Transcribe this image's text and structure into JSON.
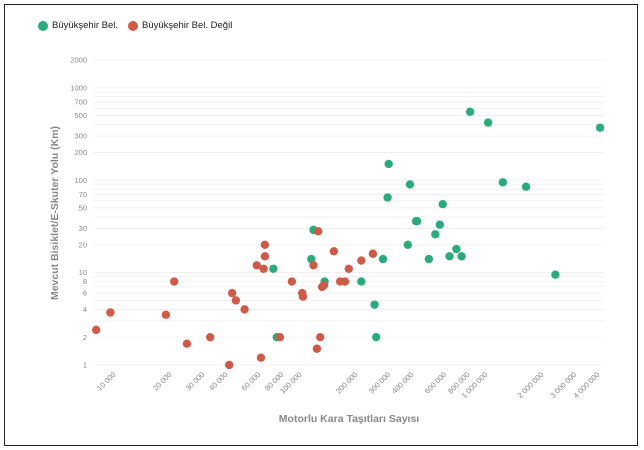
{
  "chart_data": {
    "type": "scatter",
    "title": "",
    "xlabel": "Motorlu Kara Taşıtları Sayısı",
    "ylabel": "Mevcut Bisiklet/E-Skuter Yolu (Km)",
    "x_scale": "log",
    "y_scale": "log",
    "xlim": [
      7500,
      4200000
    ],
    "ylim": [
      1,
      2000
    ],
    "grid": "horizontal",
    "legend_position": "top-left",
    "x_ticks": [
      {
        "value": 10000,
        "label": "10 000"
      },
      {
        "value": 20000,
        "label": "20 000"
      },
      {
        "value": 30000,
        "label": "30 000"
      },
      {
        "value": 40000,
        "label": "40 000"
      },
      {
        "value": 60000,
        "label": "60 000"
      },
      {
        "value": 80000,
        "label": "80 000"
      },
      {
        "value": 100000,
        "label": "100 000"
      },
      {
        "value": 200000,
        "label": "200 000"
      },
      {
        "value": 300000,
        "label": "300 000"
      },
      {
        "value": 400000,
        "label": "400 000"
      },
      {
        "value": 600000,
        "label": "600 000"
      },
      {
        "value": 800000,
        "label": "800 000"
      },
      {
        "value": 1000000,
        "label": "1 000 000"
      },
      {
        "value": 2000000,
        "label": "2 000 000"
      },
      {
        "value": 3000000,
        "label": "3 000 000"
      },
      {
        "value": 4000000,
        "label": "4 000 000"
      }
    ],
    "y_ticks": [
      {
        "value": 1,
        "label": "1"
      },
      {
        "value": 2,
        "label": "2"
      },
      {
        "value": 4,
        "label": "4"
      },
      {
        "value": 6,
        "label": "6"
      },
      {
        "value": 8,
        "label": "8"
      },
      {
        "value": 10,
        "label": "10"
      },
      {
        "value": 20,
        "label": "20"
      },
      {
        "value": 30,
        "label": "30"
      },
      {
        "value": 50,
        "label": "50"
      },
      {
        "value": 70,
        "label": "70"
      },
      {
        "value": 100,
        "label": "100"
      },
      {
        "value": 200,
        "label": "200"
      },
      {
        "value": 300,
        "label": "300"
      },
      {
        "value": 500,
        "label": "500"
      },
      {
        "value": 700,
        "label": "700"
      },
      {
        "value": 1000,
        "label": "1000"
      },
      {
        "value": 2000,
        "label": "2000"
      }
    ],
    "series": [
      {
        "name": "Büyükşehir Bel.",
        "color": "#2bab7c",
        "points": [
          [
            70000,
            11
          ],
          [
            73000,
            2
          ],
          [
            112000,
            14
          ],
          [
            115000,
            29
          ],
          [
            132000,
            8
          ],
          [
            208000,
            8
          ],
          [
            245000,
            4.5
          ],
          [
            250000,
            2
          ],
          [
            272000,
            14
          ],
          [
            288000,
            65
          ],
          [
            292000,
            150
          ],
          [
            370000,
            20
          ],
          [
            380000,
            90
          ],
          [
            410000,
            36
          ],
          [
            415000,
            36
          ],
          [
            480000,
            14
          ],
          [
            520000,
            26
          ],
          [
            550000,
            33
          ],
          [
            570000,
            55
          ],
          [
            620000,
            15
          ],
          [
            675000,
            18
          ],
          [
            720000,
            15
          ],
          [
            800000,
            550
          ],
          [
            1000000,
            420
          ],
          [
            1200000,
            95
          ],
          [
            1600000,
            85
          ],
          [
            2300000,
            9.5
          ],
          [
            4000000,
            370
          ]
        ]
      },
      {
        "name": "Büyükşehir Bel. Değil",
        "color": "#d05a48",
        "points": [
          [
            7800,
            2.4
          ],
          [
            9300,
            3.7
          ],
          [
            18500,
            3.5
          ],
          [
            20500,
            8
          ],
          [
            24000,
            1.7
          ],
          [
            32000,
            2
          ],
          [
            40500,
            1
          ],
          [
            42000,
            6
          ],
          [
            44000,
            5
          ],
          [
            49000,
            4
          ],
          [
            57000,
            12
          ],
          [
            60000,
            1.2
          ],
          [
            62000,
            11
          ],
          [
            63000,
            15
          ],
          [
            63000,
            20
          ],
          [
            76000,
            2
          ],
          [
            88000,
            8
          ],
          [
            100000,
            6
          ],
          [
            101000,
            5.5
          ],
          [
            115000,
            12
          ],
          [
            120000,
            1.5
          ],
          [
            122000,
            28
          ],
          [
            125000,
            2
          ],
          [
            128000,
            7
          ],
          [
            131000,
            7.3
          ],
          [
            148000,
            17
          ],
          [
            160000,
            8
          ],
          [
            170000,
            8
          ],
          [
            178000,
            11
          ],
          [
            208000,
            13.5
          ],
          [
            240000,
            16
          ]
        ]
      }
    ]
  }
}
